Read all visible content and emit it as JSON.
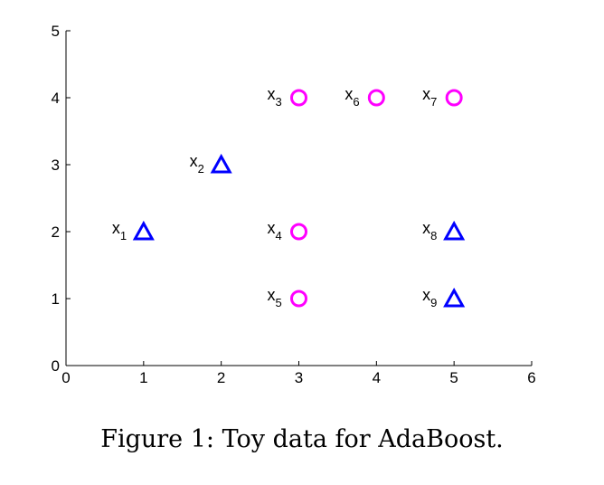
{
  "chart_data": {
    "type": "scatter",
    "xlim": [
      0,
      6
    ],
    "ylim": [
      0,
      5
    ],
    "xticks": [
      0,
      1,
      2,
      3,
      4,
      5,
      6
    ],
    "yticks": [
      0,
      1,
      2,
      3,
      4,
      5
    ],
    "grid": false,
    "colors": {
      "triangle": "#0000ff",
      "circle": "#ff00ff"
    },
    "series": [
      {
        "marker": "triangle",
        "points": [
          {
            "label": "x",
            "sub": "1",
            "x": 1,
            "y": 2
          },
          {
            "label": "x",
            "sub": "2",
            "x": 2,
            "y": 3
          },
          {
            "label": "x",
            "sub": "8",
            "x": 5,
            "y": 2
          },
          {
            "label": "x",
            "sub": "9",
            "x": 5,
            "y": 1
          }
        ]
      },
      {
        "marker": "circle",
        "points": [
          {
            "label": "x",
            "sub": "3",
            "x": 3,
            "y": 4
          },
          {
            "label": "x",
            "sub": "4",
            "x": 3,
            "y": 2
          },
          {
            "label": "x",
            "sub": "5",
            "x": 3,
            "y": 1
          },
          {
            "label": "x",
            "sub": "6",
            "x": 4,
            "y": 4
          },
          {
            "label": "x",
            "sub": "7",
            "x": 5,
            "y": 4
          }
        ]
      }
    ]
  },
  "caption": "Figure 1: Toy data for AdaBoost."
}
